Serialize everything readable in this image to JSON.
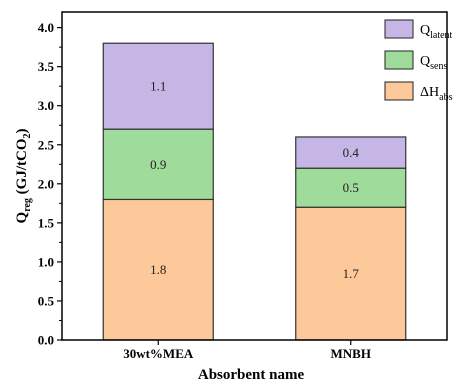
{
  "chart_data": {
    "type": "bar",
    "stacked": true,
    "categories": [
      "30wt%MEA",
      "MNBH"
    ],
    "series": [
      {
        "name": "ΔH_abs",
        "legend_main": "ΔH",
        "legend_sub": "abs",
        "values": [
          1.8,
          1.7
        ],
        "color": "#FDC89A"
      },
      {
        "name": "Q_sens",
        "legend_main": "Q",
        "legend_sub": "sens",
        "values": [
          0.9,
          0.5
        ],
        "color": "#9FDB9A"
      },
      {
        "name": "Q_latent",
        "legend_main": "Q",
        "legend_sub": "latent",
        "values": [
          1.1,
          0.4
        ],
        "color": "#C6B6E6"
      }
    ],
    "xlabel": "Absorbent name",
    "ylabel": "Q_reg (GJ/tCO_2)",
    "ylabel_parts": {
      "q": "Q",
      "q_sub": "reg",
      "unit_open": " (GJ/tCO",
      "co2_sub": "2",
      "unit_close": ")"
    },
    "ylim": [
      0,
      4.2
    ],
    "yticks": [
      "0.0",
      "0.5",
      "1.0",
      "1.5",
      "2.0",
      "2.5",
      "3.0",
      "3.5",
      "4.0"
    ],
    "legend_position": "top-right",
    "legend_order": [
      "Q_latent",
      "Q_sens",
      "ΔH_abs"
    ],
    "grid": false
  }
}
